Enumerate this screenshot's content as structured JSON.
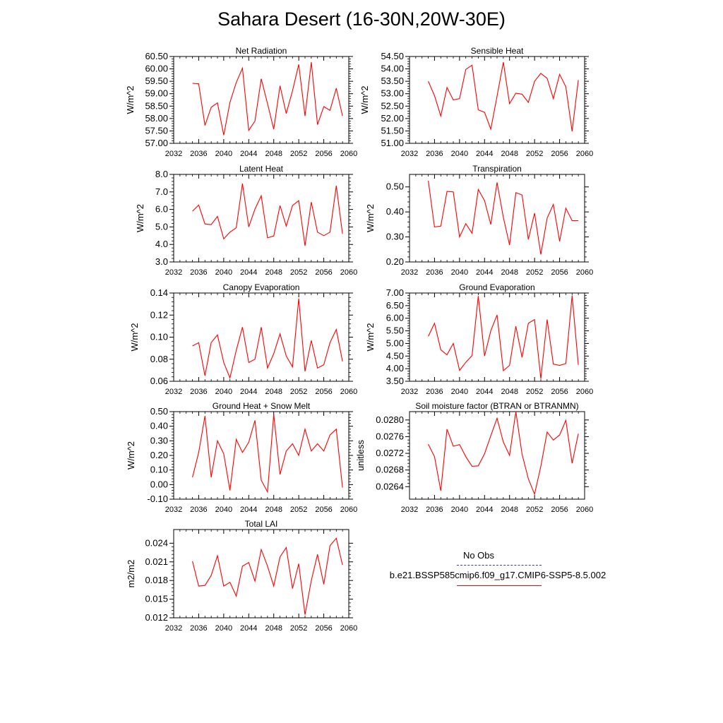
{
  "figure": {
    "title": "Sahara Desert (16-30N,20W-30E)",
    "legend": {
      "obs_label": "No Obs",
      "obs_color": "#3a3aa6",
      "model_label": "b.e21.BSSP585cmip6.f09_g17.CMIP6-SSP5-8.5.002",
      "model_color": "#ff0000"
    }
  },
  "chart_data": [
    {
      "type": "line",
      "title": "Net Radiation",
      "ylabel": "W/m^2",
      "xlim": [
        2032,
        2060
      ],
      "xticks": [
        2032,
        2036,
        2040,
        2044,
        2048,
        2052,
        2056,
        2060
      ],
      "ylim": [
        57.0,
        60.5
      ],
      "yticks": [
        "57.00",
        "57.50",
        "58.00",
        "58.50",
        "59.00",
        "59.50",
        "60.00",
        "60.50"
      ],
      "x": [
        2035,
        2036,
        2037,
        2038,
        2039,
        2040,
        2041,
        2042,
        2043,
        2044,
        2045,
        2046,
        2047,
        2048,
        2049,
        2050,
        2051,
        2052,
        2053,
        2054,
        2055,
        2056,
        2057,
        2058,
        2059
      ],
      "series": [
        {
          "values": [
            59.42,
            59.4,
            57.72,
            58.45,
            58.63,
            57.33,
            58.65,
            59.45,
            60.03,
            57.52,
            57.9,
            59.6,
            58.6,
            57.57,
            59.32,
            58.2,
            59.12,
            60.18,
            58.1,
            60.27,
            57.75,
            58.48,
            58.33,
            59.22,
            58.1
          ]
        }
      ]
    },
    {
      "type": "line",
      "title": "Sensible Heat",
      "ylabel": "W/m^2",
      "xlim": [
        2032,
        2060
      ],
      "xticks": [
        2032,
        2036,
        2040,
        2044,
        2048,
        2052,
        2056,
        2060
      ],
      "ylim": [
        51.0,
        54.5
      ],
      "yticks": [
        "51.00",
        "51.50",
        "52.00",
        "52.50",
        "53.00",
        "53.50",
        "54.00",
        "54.50"
      ],
      "x": [
        2035,
        2036,
        2037,
        2038,
        2039,
        2040,
        2041,
        2042,
        2043,
        2044,
        2045,
        2046,
        2047,
        2048,
        2049,
        2050,
        2051,
        2052,
        2053,
        2054,
        2055,
        2056,
        2057,
        2058,
        2059
      ],
      "series": [
        {
          "values": [
            53.5,
            52.92,
            52.1,
            53.25,
            52.75,
            52.8,
            53.98,
            54.15,
            52.35,
            52.25,
            51.57,
            52.9,
            54.27,
            52.6,
            53.02,
            52.98,
            52.65,
            53.5,
            53.82,
            53.62,
            52.8,
            53.78,
            53.28,
            51.48,
            53.55
          ]
        }
      ]
    },
    {
      "type": "line",
      "title": "Latent Heat",
      "ylabel": "W/m^2",
      "xlim": [
        2032,
        2060
      ],
      "xticks": [
        2032,
        2036,
        2040,
        2044,
        2048,
        2052,
        2056,
        2060
      ],
      "ylim": [
        3.0,
        8.0
      ],
      "yticks": [
        "3.0",
        "4.0",
        "5.0",
        "6.0",
        "7.0",
        "8.0"
      ],
      "x": [
        2035,
        2036,
        2037,
        2038,
        2039,
        2040,
        2041,
        2042,
        2043,
        2044,
        2045,
        2046,
        2047,
        2048,
        2049,
        2050,
        2051,
        2052,
        2053,
        2054,
        2055,
        2056,
        2057,
        2058,
        2059
      ],
      "series": [
        {
          "values": [
            5.9,
            6.25,
            5.17,
            5.13,
            5.6,
            4.32,
            4.7,
            4.95,
            7.48,
            5.0,
            6.02,
            6.78,
            4.38,
            4.48,
            6.22,
            5.05,
            6.22,
            6.5,
            3.92,
            6.42,
            4.7,
            4.5,
            4.7,
            7.35,
            4.6
          ]
        }
      ]
    },
    {
      "type": "line",
      "title": "Transpiration",
      "ylabel": "W/m^2",
      "xlim": [
        2032,
        2060
      ],
      "xticks": [
        2032,
        2036,
        2040,
        2044,
        2048,
        2052,
        2056,
        2060
      ],
      "ylim": [
        0.2,
        0.55
      ],
      "yticks": [
        "0.20",
        "0.30",
        "0.40",
        "0.50"
      ],
      "x": [
        2035,
        2036,
        2037,
        2038,
        2039,
        2040,
        2041,
        2042,
        2043,
        2044,
        2045,
        2046,
        2047,
        2048,
        2049,
        2050,
        2051,
        2052,
        2053,
        2054,
        2055,
        2056,
        2057,
        2058,
        2059
      ],
      "series": [
        {
          "values": [
            0.525,
            0.34,
            0.343,
            0.482,
            0.48,
            0.3,
            0.353,
            0.315,
            0.49,
            0.445,
            0.35,
            0.518,
            0.378,
            0.268,
            0.477,
            0.468,
            0.29,
            0.395,
            0.23,
            0.375,
            0.43,
            0.282,
            0.415,
            0.365,
            0.365
          ]
        }
      ]
    },
    {
      "type": "line",
      "title": "Canopy Evaporation",
      "ylabel": "W/m^2",
      "xlim": [
        2032,
        2060
      ],
      "xticks": [
        2032,
        2036,
        2040,
        2044,
        2048,
        2052,
        2056,
        2060
      ],
      "ylim": [
        0.06,
        0.14
      ],
      "yticks": [
        "0.06",
        "0.08",
        "0.10",
        "0.12",
        "0.14"
      ],
      "x": [
        2035,
        2036,
        2037,
        2038,
        2039,
        2040,
        2041,
        2042,
        2043,
        2044,
        2045,
        2046,
        2047,
        2048,
        2049,
        2050,
        2051,
        2052,
        2053,
        2054,
        2055,
        2056,
        2057,
        2058,
        2059
      ],
      "series": [
        {
          "values": [
            0.092,
            0.095,
            0.065,
            0.095,
            0.102,
            0.077,
            0.063,
            0.088,
            0.109,
            0.077,
            0.08,
            0.109,
            0.072,
            0.085,
            0.103,
            0.083,
            0.073,
            0.135,
            0.069,
            0.097,
            0.072,
            0.075,
            0.095,
            0.107,
            0.078
          ]
        }
      ]
    },
    {
      "type": "line",
      "title": "Ground Evaporation",
      "ylabel": "W/m^2",
      "xlim": [
        2032,
        2060
      ],
      "xticks": [
        2032,
        2036,
        2040,
        2044,
        2048,
        2052,
        2056,
        2060
      ],
      "ylim": [
        3.5,
        7.0
      ],
      "yticks": [
        "3.50",
        "4.00",
        "4.50",
        "5.00",
        "5.50",
        "6.00",
        "6.50",
        "7.00"
      ],
      "x": [
        2035,
        2036,
        2037,
        2038,
        2039,
        2040,
        2041,
        2042,
        2043,
        2044,
        2045,
        2046,
        2047,
        2048,
        2049,
        2050,
        2051,
        2052,
        2053,
        2054,
        2055,
        2056,
        2057,
        2058,
        2059
      ],
      "series": [
        {
          "values": [
            5.28,
            5.8,
            4.75,
            4.55,
            5.0,
            3.93,
            4.25,
            4.52,
            6.88,
            4.5,
            5.5,
            6.13,
            3.92,
            4.13,
            5.68,
            4.45,
            5.8,
            5.95,
            3.6,
            5.95,
            4.18,
            4.13,
            4.2,
            6.9,
            4.15
          ]
        }
      ]
    },
    {
      "type": "line",
      "title": "Ground Heat + Snow Melt",
      "ylabel": "W/m^2",
      "xlim": [
        2032,
        2060
      ],
      "xticks": [
        2032,
        2036,
        2040,
        2044,
        2048,
        2052,
        2056,
        2060
      ],
      "ylim": [
        -0.1,
        0.5
      ],
      "yticks": [
        "-0.10",
        "0.00",
        "0.10",
        "0.20",
        "0.30",
        "0.40",
        "0.50"
      ],
      "x": [
        2035,
        2036,
        2037,
        2038,
        2039,
        2040,
        2041,
        2042,
        2043,
        2044,
        2045,
        2046,
        2047,
        2048,
        2049,
        2050,
        2051,
        2052,
        2053,
        2054,
        2055,
        2056,
        2057,
        2058,
        2059
      ],
      "series": [
        {
          "values": [
            0.05,
            0.22,
            0.47,
            0.05,
            0.3,
            0.21,
            -0.04,
            0.31,
            0.22,
            0.29,
            0.44,
            0.03,
            -0.05,
            0.48,
            0.07,
            0.23,
            0.28,
            0.2,
            0.38,
            0.23,
            0.28,
            0.23,
            0.34,
            0.38,
            -0.02
          ]
        }
      ]
    },
    {
      "type": "line",
      "title": "Soil moisture factor (BTRAN or BTRANMN)",
      "ylabel": "unitless",
      "xlim": [
        2032,
        2060
      ],
      "xticks": [
        2032,
        2036,
        2040,
        2044,
        2048,
        2052,
        2056,
        2060
      ],
      "ylim": [
        0.0261,
        0.0282
      ],
      "yticks": [
        "0.0264",
        "0.0268",
        "0.0272",
        "0.0276",
        "0.0280"
      ],
      "x": [
        2035,
        2036,
        2037,
        2038,
        2039,
        2040,
        2041,
        2042,
        2043,
        2044,
        2045,
        2046,
        2047,
        2048,
        2049,
        2050,
        2051,
        2052,
        2053,
        2054,
        2055,
        2056,
        2057,
        2058,
        2059
      ],
      "series": [
        {
          "values": [
            0.02742,
            0.02712,
            0.0263,
            0.02778,
            0.02737,
            0.02741,
            0.02712,
            0.02689,
            0.0269,
            0.02719,
            0.02762,
            0.02804,
            0.02747,
            0.02715,
            0.0282,
            0.02718,
            0.02659,
            0.02622,
            0.02689,
            0.02771,
            0.02752,
            0.02764,
            0.02799,
            0.02696,
            0.02767
          ]
        }
      ]
    },
    {
      "type": "line",
      "title": "Total LAI",
      "ylabel": "m2/m2",
      "xlim": [
        2032,
        2060
      ],
      "xticks": [
        2032,
        2036,
        2040,
        2044,
        2048,
        2052,
        2056,
        2060
      ],
      "ylim": [
        0.012,
        0.0262
      ],
      "yticks": [
        "0.012",
        "0.015",
        "0.018",
        "0.021",
        "0.024"
      ],
      "x": [
        2035,
        2036,
        2037,
        2038,
        2039,
        2040,
        2041,
        2042,
        2043,
        2044,
        2045,
        2046,
        2047,
        2048,
        2049,
        2050,
        2051,
        2052,
        2053,
        2054,
        2055,
        2056,
        2057,
        2058,
        2059
      ],
      "series": [
        {
          "values": [
            0.0211,
            0.0171,
            0.0172,
            0.0188,
            0.022,
            0.0171,
            0.0177,
            0.0155,
            0.0203,
            0.0209,
            0.0179,
            0.023,
            0.0203,
            0.0171,
            0.0218,
            0.0233,
            0.0167,
            0.0207,
            0.0125,
            0.018,
            0.0222,
            0.0174,
            0.0236,
            0.0248,
            0.0205
          ]
        }
      ]
    }
  ]
}
